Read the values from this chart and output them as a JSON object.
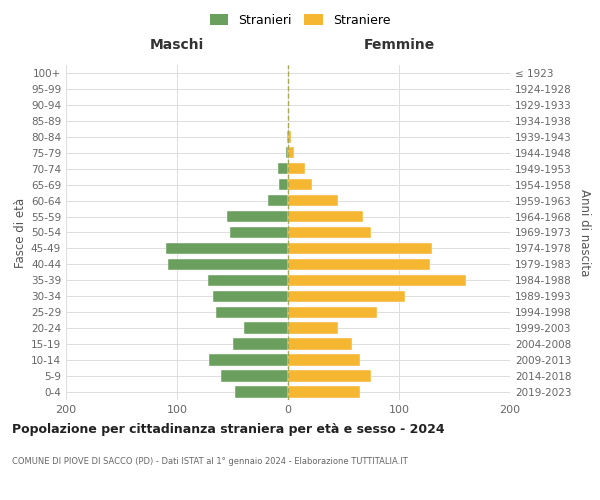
{
  "age_groups": [
    "0-4",
    "5-9",
    "10-14",
    "15-19",
    "20-24",
    "25-29",
    "30-34",
    "35-39",
    "40-44",
    "45-49",
    "50-54",
    "55-59",
    "60-64",
    "65-69",
    "70-74",
    "75-79",
    "80-84",
    "85-89",
    "90-94",
    "95-99",
    "100+"
  ],
  "birth_years": [
    "2019-2023",
    "2014-2018",
    "2009-2013",
    "2004-2008",
    "1999-2003",
    "1994-1998",
    "1989-1993",
    "1984-1988",
    "1979-1983",
    "1974-1978",
    "1969-1973",
    "1964-1968",
    "1959-1963",
    "1954-1958",
    "1949-1953",
    "1944-1948",
    "1939-1943",
    "1934-1938",
    "1929-1933",
    "1924-1928",
    "≤ 1923"
  ],
  "maschi": [
    48,
    60,
    71,
    50,
    40,
    65,
    68,
    72,
    108,
    110,
    52,
    55,
    18,
    8,
    9,
    2,
    1,
    0,
    0,
    0,
    0
  ],
  "femmine": [
    65,
    75,
    65,
    58,
    45,
    80,
    105,
    160,
    128,
    130,
    75,
    68,
    45,
    22,
    15,
    5,
    3,
    0,
    0,
    0,
    0
  ],
  "maschi_color": "#6a9f5e",
  "femmine_color": "#f5b731",
  "background_color": "#ffffff",
  "grid_color": "#dddddd",
  "title": "Popolazione per cittadinanza straniera per età e sesso - 2024",
  "subtitle": "COMUNE DI PIOVE DI SACCO (PD) - Dati ISTAT al 1° gennaio 2024 - Elaborazione TUTTITALIA.IT",
  "xlabel_left": "Maschi",
  "xlabel_right": "Femmine",
  "ylabel_left": "Fasce di età",
  "ylabel_right": "Anni di nascita",
  "legend_maschi": "Stranieri",
  "legend_femmine": "Straniere",
  "xlim": 200,
  "dashed_line_color": "#aaa855"
}
